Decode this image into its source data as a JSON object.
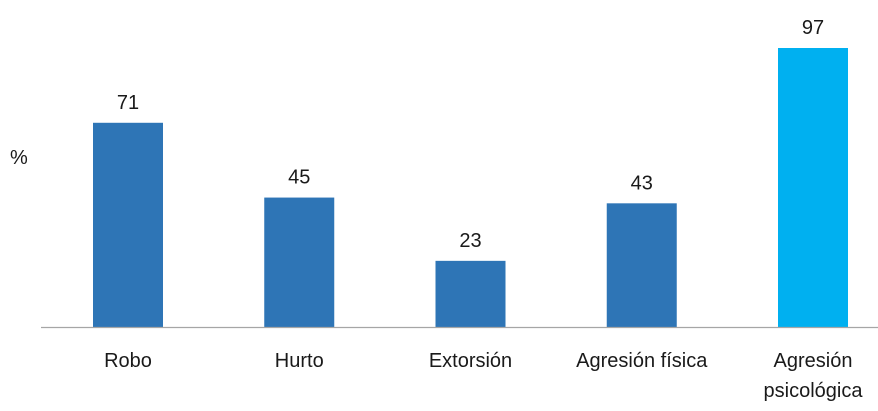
{
  "chart_data": {
    "type": "bar",
    "title": "",
    "xlabel": "",
    "ylabel": "%",
    "categories": [
      "Robo",
      "Hurto",
      "Extorsión",
      "Agresión física",
      "Agresión psicológica"
    ],
    "category_lines": [
      [
        "Robo"
      ],
      [
        "Hurto"
      ],
      [
        "Extorsión"
      ],
      [
        "Agresión física"
      ],
      [
        "Agresión",
        "psicológica"
      ]
    ],
    "values": [
      71,
      45,
      23,
      43,
      97
    ],
    "value_labels": [
      "71",
      "45",
      "23",
      "43",
      "97"
    ],
    "ylim": [
      0,
      97
    ],
    "grid": false,
    "legend": "none",
    "colors": {
      "bar": "#2e75b6",
      "highlight_bar": "#00b0f0",
      "axis": "#a6a6a6",
      "text": "#1a1a1a"
    },
    "highlight_index": 4
  }
}
